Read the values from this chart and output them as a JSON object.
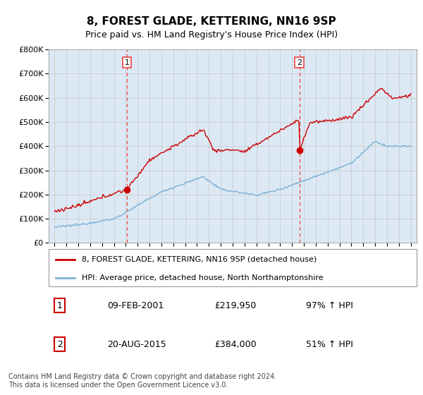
{
  "title": "8, FOREST GLADE, KETTERING, NN16 9SP",
  "subtitle": "Price paid vs. HM Land Registry's House Price Index (HPI)",
  "legend_line1": "8, FOREST GLADE, KETTERING, NN16 9SP (detached house)",
  "legend_line2": "HPI: Average price, detached house, North Northamptonshire",
  "sale1_date": "09-FEB-2001",
  "sale1_price": "£219,950",
  "sale1_hpi": "97% ↑ HPI",
  "sale1_year": 2001.1,
  "sale1_value": 219950,
  "sale2_date": "20-AUG-2015",
  "sale2_price": "£384,000",
  "sale2_hpi": "51% ↑ HPI",
  "sale2_year": 2015.63,
  "sale2_value": 384000,
  "red_color": "#cc0000",
  "blue_color": "#7ab0d4",
  "marker_color": "#cc0000",
  "vline_color": "#ee4444",
  "grid_color": "#cccccc",
  "plot_bg": "#dce9f5",
  "footer": "Contains HM Land Registry data © Crown copyright and database right 2024.\nThis data is licensed under the Open Government Licence v3.0.",
  "ylim": [
    0,
    800000
  ],
  "xlim": [
    1994.5,
    2025.5
  ],
  "xtick_start": 1995,
  "xtick_end": 2025
}
